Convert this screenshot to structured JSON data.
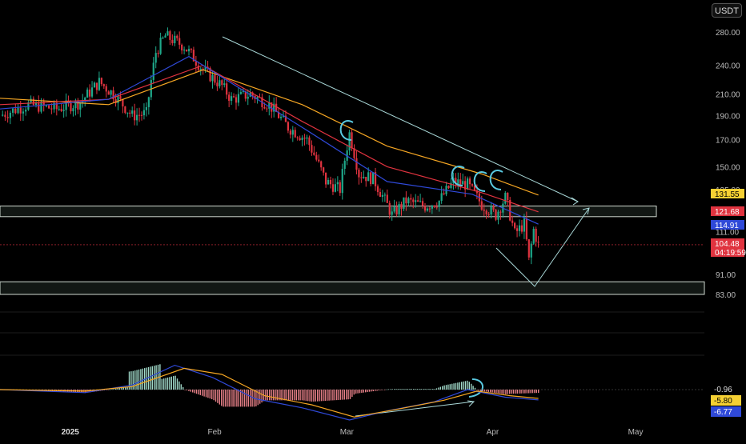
{
  "currency": "USDT",
  "chart_data": [
    {
      "type": "candlestick",
      "title": "",
      "y_ticks": [
        280.0,
        240.0,
        210.0,
        190.0,
        170.0,
        150.0,
        135.0,
        111.0,
        91.0,
        83.0
      ],
      "y_tick_labels": [
        "280.00",
        "240.00",
        "210.00",
        "190.00",
        "170.00",
        "150.00",
        "135.00",
        "111.00",
        "91.00",
        "83.00"
      ],
      "scale": "log",
      "x_labels": [
        "2025",
        "Feb",
        "Mar",
        "Apr",
        "May"
      ],
      "price_tags": [
        {
          "label": "131.55",
          "color": "#f5d033",
          "text_color": "#000"
        },
        {
          "label": "121.68",
          "color": "#e0333f",
          "text_color": "#fff"
        },
        {
          "label": "114.91",
          "color": "#2f49d8",
          "text_color": "#fff"
        },
        {
          "label": "104.48",
          "color": "#e0333f",
          "text_color": "#fff"
        },
        {
          "label": "04:19:59",
          "color": "#e0333f",
          "text_color": "#fff"
        }
      ],
      "ohlc_path": [
        {
          "date": "2024-12-18",
          "close": 190
        },
        {
          "date": "2024-12-24",
          "close": 200
        },
        {
          "date": "2024-12-30",
          "close": 196
        },
        {
          "date": "2025-01-04",
          "close": 202
        },
        {
          "date": "2025-01-08",
          "close": 222
        },
        {
          "date": "2025-01-11",
          "close": 210
        },
        {
          "date": "2025-01-15",
          "close": 190
        },
        {
          "date": "2025-01-18",
          "close": 192
        },
        {
          "date": "2025-01-20",
          "close": 255
        },
        {
          "date": "2025-01-22",
          "close": 275
        },
        {
          "date": "2025-01-26",
          "close": 262
        },
        {
          "date": "2025-01-30",
          "close": 235
        },
        {
          "date": "2025-02-03",
          "close": 218
        },
        {
          "date": "2025-02-05",
          "close": 205
        },
        {
          "date": "2025-02-09",
          "close": 210
        },
        {
          "date": "2025-02-13",
          "close": 200
        },
        {
          "date": "2025-02-17",
          "close": 180
        },
        {
          "date": "2025-02-21",
          "close": 170
        },
        {
          "date": "2025-02-25",
          "close": 140
        },
        {
          "date": "2025-02-28",
          "close": 135
        },
        {
          "date": "2025-03-02",
          "close": 175
        },
        {
          "date": "2025-03-04",
          "close": 145
        },
        {
          "date": "2025-03-07",
          "close": 142
        },
        {
          "date": "2025-03-11",
          "close": 120
        },
        {
          "date": "2025-03-14",
          "close": 128
        },
        {
          "date": "2025-03-18",
          "close": 125
        },
        {
          "date": "2025-03-21",
          "close": 128
        },
        {
          "date": "2025-03-24",
          "close": 140
        },
        {
          "date": "2025-03-27",
          "close": 138
        },
        {
          "date": "2025-03-30",
          "close": 126
        },
        {
          "date": "2025-04-02",
          "close": 120
        },
        {
          "date": "2025-04-04",
          "close": 130
        },
        {
          "date": "2025-04-06",
          "close": 110
        },
        {
          "date": "2025-04-08",
          "close": 115
        },
        {
          "date": "2025-04-09",
          "close": 97
        },
        {
          "date": "2025-04-10",
          "close": 112
        },
        {
          "date": "2025-04-11",
          "close": 104.48
        }
      ],
      "moving_averages": [
        {
          "color": "#f5a623",
          "points": [
            [
              "2024-12-18",
              206
            ],
            [
              "2025-01-10",
              200
            ],
            [
              "2025-01-30",
              235
            ],
            [
              "2025-02-20",
              200
            ],
            [
              "2025-03-10",
              165
            ],
            [
              "2025-03-30",
              145
            ],
            [
              "2025-04-11",
              131.55
            ]
          ]
        },
        {
          "color": "#e0333f",
          "points": [
            [
              "2024-12-18",
              200
            ],
            [
              "2025-01-10",
              205
            ],
            [
              "2025-01-30",
              240
            ],
            [
              "2025-02-20",
              185
            ],
            [
              "2025-03-10",
              150
            ],
            [
              "2025-03-30",
              133
            ],
            [
              "2025-04-11",
              121.68
            ]
          ]
        },
        {
          "color": "#2f49d8",
          "points": [
            [
              "2024-12-18",
              196
            ],
            [
              "2025-01-10",
              205
            ],
            [
              "2025-01-27",
              250
            ],
            [
              "2025-02-20",
              180
            ],
            [
              "2025-03-10",
              140
            ],
            [
              "2025-03-28",
              132
            ],
            [
              "2025-04-11",
              114.91
            ]
          ]
        }
      ],
      "zones": [
        {
          "low": 119,
          "high": 125
        },
        {
          "low": 83,
          "high": 88
        }
      ],
      "macd": {
        "zero": 0,
        "labels": [
          "-0.96",
          "-5.80",
          "-6.77"
        ],
        "label_colors": [
          "#e0333f",
          "#f5d033",
          "#2f49d8"
        ],
        "label_text_colors": [
          "#fff",
          "#000",
          "#fff"
        ],
        "macd_line": [
          [
            "2024-12-18",
            0
          ],
          [
            "2025-01-05",
            -2
          ],
          [
            "2025-01-15",
            3
          ],
          [
            "2025-01-24",
            16
          ],
          [
            "2025-02-01",
            8
          ],
          [
            "2025-02-10",
            -6
          ],
          [
            "2025-02-20",
            -12
          ],
          [
            "2025-03-02",
            -20
          ],
          [
            "2025-03-10",
            -14
          ],
          [
            "2025-03-20",
            -8
          ],
          [
            "2025-03-27",
            0
          ],
          [
            "2025-04-04",
            -5
          ],
          [
            "2025-04-11",
            -6.77
          ]
        ],
        "signal_line": [
          [
            "2024-12-18",
            0
          ],
          [
            "2025-01-05",
            -1
          ],
          [
            "2025-01-15",
            2
          ],
          [
            "2025-01-26",
            14
          ],
          [
            "2025-02-03",
            10
          ],
          [
            "2025-02-12",
            -4
          ],
          [
            "2025-02-22",
            -10
          ],
          [
            "2025-03-03",
            -18
          ],
          [
            "2025-03-12",
            -13
          ],
          [
            "2025-03-22",
            -7
          ],
          [
            "2025-03-29",
            -1
          ],
          [
            "2025-04-05",
            -4
          ],
          [
            "2025-04-11",
            -5.8
          ]
        ]
      }
    }
  ]
}
